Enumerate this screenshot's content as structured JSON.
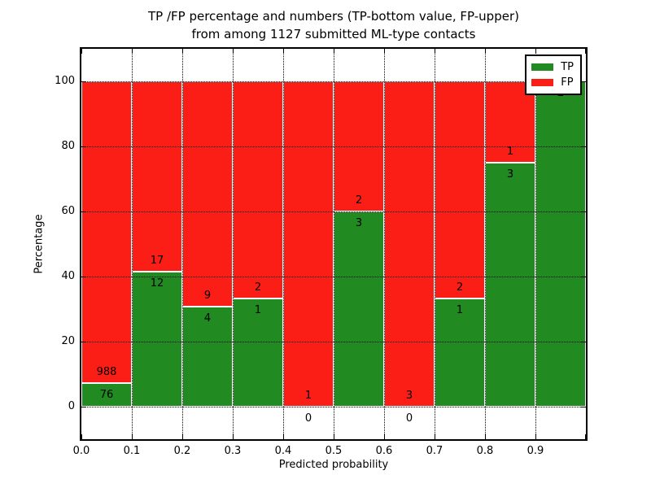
{
  "title": {
    "line1": "TP /FP percentage and numbers (TP-bottom value, FP-upper)",
    "line2": "from among 1127 submitted ML-type contacts"
  },
  "axes": {
    "xlabel": "Predicted probability",
    "ylabel": "Percentage",
    "xtick_labels": [
      "0.0",
      "0.1",
      "0.2",
      "0.3",
      "0.4",
      "0.5",
      "0.6",
      "0.7",
      "0.8",
      "0.9"
    ],
    "ytick_labels": [
      "0",
      "20",
      "40",
      "60",
      "80",
      "100"
    ]
  },
  "legend": {
    "items": [
      {
        "label": "TP",
        "color": "#218a21"
      },
      {
        "label": "FP",
        "color": "#fb1e16"
      }
    ]
  },
  "colors": {
    "tp": "#218a21",
    "fp": "#fb1e16",
    "grid": "#000000",
    "frame": "#000000",
    "background": "#ffffff"
  },
  "chart_data": {
    "type": "bar",
    "stacked": true,
    "normalized": "each bin stacked to 100%",
    "title": "TP /FP percentage and numbers (TP-bottom value, FP-upper) from among 1127 submitted ML-type contacts",
    "xlabel": "Predicted probability",
    "ylabel": "Percentage",
    "xlim": [
      0.0,
      1.0
    ],
    "ylim": [
      -10,
      110
    ],
    "yticks": [
      0,
      20,
      40,
      60,
      80,
      100
    ],
    "xticks": [
      0.0,
      0.1,
      0.2,
      0.3,
      0.4,
      0.5,
      0.6,
      0.7,
      0.8,
      0.9
    ],
    "grid": true,
    "legend_position": "upper right",
    "total_contacts": 1127,
    "categories": [
      "0.0-0.1",
      "0.1-0.2",
      "0.2-0.3",
      "0.3-0.4",
      "0.4-0.5",
      "0.5-0.6",
      "0.6-0.7",
      "0.7-0.8",
      "0.8-0.9",
      "0.9-1.0"
    ],
    "series": [
      {
        "name": "TP",
        "counts": [
          76,
          12,
          4,
          1,
          0,
          3,
          0,
          1,
          3,
          2
        ]
      },
      {
        "name": "FP",
        "counts": [
          988,
          17,
          9,
          2,
          1,
          2,
          3,
          2,
          1,
          0
        ]
      }
    ],
    "bins": [
      {
        "range": "0.0-0.1",
        "tp": 76,
        "fp": 988,
        "tp_label": "76",
        "fp_label": "988"
      },
      {
        "range": "0.1-0.2",
        "tp": 12,
        "fp": 17,
        "tp_label": "12",
        "fp_label": "17"
      },
      {
        "range": "0.2-0.3",
        "tp": 4,
        "fp": 9,
        "tp_label": "4",
        "fp_label": "9"
      },
      {
        "range": "0.3-0.4",
        "tp": 1,
        "fp": 2,
        "tp_label": "1",
        "fp_label": "2"
      },
      {
        "range": "0.4-0.5",
        "tp": 0,
        "fp": 1,
        "tp_label": "0",
        "fp_label": "1"
      },
      {
        "range": "0.5-0.6",
        "tp": 3,
        "fp": 2,
        "tp_label": "3",
        "fp_label": "2"
      },
      {
        "range": "0.6-0.7",
        "tp": 0,
        "fp": 3,
        "tp_label": "0",
        "fp_label": "3"
      },
      {
        "range": "0.7-0.8",
        "tp": 1,
        "fp": 2,
        "tp_label": "1",
        "fp_label": "2"
      },
      {
        "range": "0.8-0.9",
        "tp": 3,
        "fp": 1,
        "tp_label": "3",
        "fp_label": "1"
      },
      {
        "range": "0.9-1.0",
        "tp": 2,
        "fp": 0,
        "tp_label": "2",
        "fp_label": null
      }
    ]
  }
}
